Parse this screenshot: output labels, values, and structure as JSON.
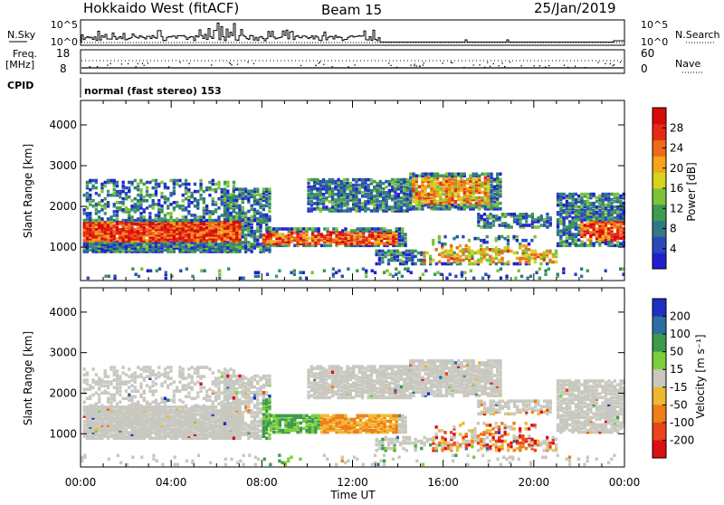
{
  "header": {
    "title": "Hokkaido West (fitACF)",
    "beam": "Beam 15",
    "date": "25/Jan/2019"
  },
  "params_panel": {
    "nsky_label": "N.Sky",
    "nsky_ticks": [
      "10^5",
      "10^0"
    ],
    "nsearch_label": "N.Search",
    "nsearch_ticks": [
      "10^5",
      "10^0"
    ],
    "freq_label_1": "Freq.",
    "freq_label_2": "[MHz]",
    "freq_ticks": [
      "18",
      "8"
    ],
    "nave_label": "Nave",
    "nave_ticks": [
      "60",
      "0"
    ],
    "cpid_label": "CPID",
    "cpid_text": "normal (fast stereo) 153"
  },
  "time_axis": {
    "ticks": [
      "00:00",
      "04:00",
      "08:00",
      "12:00",
      "16:00",
      "20:00",
      "00:00"
    ],
    "label": "Time UT"
  },
  "chart_data": [
    {
      "type": "heatmap",
      "name": "power",
      "ylabel": "Slant Range [km]",
      "xlabel": "Time UT",
      "x_range_hours": [
        0,
        24
      ],
      "ylim": [
        180,
        4600
      ],
      "yticks": [
        "1000",
        "2000",
        "3000",
        "4000"
      ],
      "ytick_values": [
        1000,
        2000,
        3000,
        4000
      ],
      "colorbar": {
        "label": "Power [dB]",
        "ticks": [
          "4",
          "8",
          "12",
          "16",
          "20",
          "24",
          "28"
        ],
        "tick_values": [
          4,
          8,
          12,
          16,
          20,
          24,
          28
        ],
        "range": [
          0,
          32
        ],
        "colors": [
          "#1f1fd0",
          "#2a48b8",
          "#2f7a86",
          "#3f9a52",
          "#7cc23a",
          "#d6d21e",
          "#f2a51c",
          "#ef6a18",
          "#e62b14",
          "#d80a0a"
        ]
      }
    },
    {
      "type": "heatmap",
      "name": "velocity",
      "ylabel": "Slant Range [km]",
      "xlabel": "Time UT",
      "x_range_hours": [
        0,
        24
      ],
      "ylim": [
        180,
        4600
      ],
      "yticks": [
        "1000",
        "2000",
        "3000",
        "4000"
      ],
      "ytick_values": [
        1000,
        2000,
        3000,
        4000
      ],
      "colorbar": {
        "label": "Velocity [m s⁻¹]",
        "ticks": [
          "200",
          "100",
          "50",
          "15",
          "-15",
          "-50",
          "-100",
          "-200"
        ],
        "colors": [
          "#1f2fbf",
          "#2d6fa0",
          "#3d9a4c",
          "#7ccf3a",
          "#c8c8c0",
          "#f0b830",
          "#ee7e18",
          "#e8451a",
          "#dd1010"
        ]
      }
    }
  ]
}
